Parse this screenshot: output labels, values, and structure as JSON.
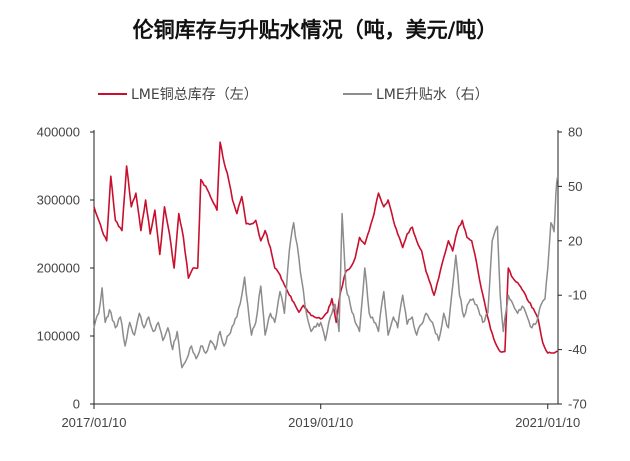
{
  "chart_data": {
    "type": "line",
    "title": "伦铜库存与升贴水情况（吨，美元/吨）",
    "colors": {
      "inventory": "#c8102e",
      "premium": "#8c8c8c"
    },
    "legend_placement": "top",
    "grid": false,
    "x_ticks": [
      "2017/01/10",
      "2019/01/10",
      "2021/01/10"
    ],
    "y_left": {
      "ticks": [
        "0",
        "100000",
        "200000",
        "300000",
        "400000"
      ],
      "range": [
        0,
        400000
      ]
    },
    "y_right": {
      "ticks": [
        "-70",
        "-40",
        "-10",
        "20",
        "50",
        "80"
      ],
      "range": [
        -70,
        80
      ]
    },
    "series": [
      {
        "name": "LME铜总库存（左）",
        "axis": "left",
        "color": "#c8102e",
        "points": [
          [
            "2017-01-10",
            290000
          ],
          [
            "2017-02-05",
            255000
          ],
          [
            "2017-02-20",
            240000
          ],
          [
            "2017-03-05",
            335000
          ],
          [
            "2017-03-20",
            270000
          ],
          [
            "2017-04-10",
            255000
          ],
          [
            "2017-04-25",
            350000
          ],
          [
            "2017-05-10",
            290000
          ],
          [
            "2017-05-25",
            310000
          ],
          [
            "2017-06-10",
            255000
          ],
          [
            "2017-06-25",
            300000
          ],
          [
            "2017-07-10",
            250000
          ],
          [
            "2017-07-25",
            285000
          ],
          [
            "2017-08-10",
            220000
          ],
          [
            "2017-08-25",
            290000
          ],
          [
            "2017-09-10",
            250000
          ],
          [
            "2017-09-25",
            200000
          ],
          [
            "2017-10-10",
            280000
          ],
          [
            "2017-10-25",
            245000
          ],
          [
            "2017-11-10",
            185000
          ],
          [
            "2017-11-25",
            200000
          ],
          [
            "2017-12-10",
            200000
          ],
          [
            "2017-12-20",
            330000
          ],
          [
            "2018-01-10",
            315000
          ],
          [
            "2018-01-25",
            300000
          ],
          [
            "2018-02-10",
            285000
          ],
          [
            "2018-02-20",
            385000
          ],
          [
            "2018-03-05",
            355000
          ],
          [
            "2018-03-15",
            340000
          ],
          [
            "2018-04-01",
            300000
          ],
          [
            "2018-04-15",
            280000
          ],
          [
            "2018-05-01",
            305000
          ],
          [
            "2018-05-15",
            265000
          ],
          [
            "2018-06-01",
            265000
          ],
          [
            "2018-06-15",
            270000
          ],
          [
            "2018-07-01",
            240000
          ],
          [
            "2018-07-15",
            255000
          ],
          [
            "2018-08-01",
            230000
          ],
          [
            "2018-08-15",
            200000
          ],
          [
            "2018-09-01",
            190000
          ],
          [
            "2018-09-15",
            175000
          ],
          [
            "2018-10-01",
            160000
          ],
          [
            "2018-10-15",
            150000
          ],
          [
            "2018-11-01",
            135000
          ],
          [
            "2018-11-15",
            145000
          ],
          [
            "2018-12-01",
            135000
          ],
          [
            "2018-12-15",
            130000
          ],
          [
            "2019-01-10",
            125000
          ],
          [
            "2019-02-01",
            135000
          ],
          [
            "2019-02-15",
            155000
          ],
          [
            "2019-03-01",
            120000
          ],
          [
            "2019-03-15",
            165000
          ],
          [
            "2019-04-01",
            195000
          ],
          [
            "2019-04-15",
            200000
          ],
          [
            "2019-05-01",
            215000
          ],
          [
            "2019-05-15",
            245000
          ],
          [
            "2019-06-01",
            235000
          ],
          [
            "2019-06-15",
            255000
          ],
          [
            "2019-07-01",
            280000
          ],
          [
            "2019-07-15",
            310000
          ],
          [
            "2019-08-01",
            290000
          ],
          [
            "2019-08-15",
            300000
          ],
          [
            "2019-09-01",
            270000
          ],
          [
            "2019-09-15",
            250000
          ],
          [
            "2019-10-01",
            230000
          ],
          [
            "2019-10-15",
            250000
          ],
          [
            "2019-11-01",
            260000
          ],
          [
            "2019-11-15",
            240000
          ],
          [
            "2019-12-01",
            225000
          ],
          [
            "2019-12-15",
            195000
          ],
          [
            "2020-01-10",
            160000
          ],
          [
            "2020-01-25",
            185000
          ],
          [
            "2020-02-10",
            215000
          ],
          [
            "2020-02-25",
            240000
          ],
          [
            "2020-03-10",
            225000
          ],
          [
            "2020-03-25",
            255000
          ],
          [
            "2020-04-10",
            270000
          ],
          [
            "2020-04-25",
            245000
          ],
          [
            "2020-05-10",
            240000
          ],
          [
            "2020-05-25",
            210000
          ],
          [
            "2020-06-10",
            170000
          ],
          [
            "2020-06-25",
            140000
          ],
          [
            "2020-07-10",
            110000
          ],
          [
            "2020-07-25",
            90000
          ],
          [
            "2020-08-10",
            77000
          ],
          [
            "2020-08-25",
            77000
          ],
          [
            "2020-09-05",
            200000
          ],
          [
            "2020-09-20",
            185000
          ],
          [
            "2020-10-10",
            175000
          ],
          [
            "2020-10-25",
            165000
          ],
          [
            "2020-11-10",
            150000
          ],
          [
            "2020-11-25",
            140000
          ],
          [
            "2020-12-10",
            125000
          ],
          [
            "2020-12-25",
            90000
          ],
          [
            "2021-01-10",
            75000
          ],
          [
            "2021-01-25",
            75000
          ],
          [
            "2021-02-10",
            78000
          ]
        ]
      },
      {
        "name": "LME升贴水（右）",
        "axis": "right",
        "color": "#8c8c8c",
        "points": [
          [
            "2017-01-10",
            -28
          ],
          [
            "2017-01-25",
            -20
          ],
          [
            "2017-02-05",
            -6
          ],
          [
            "2017-02-15",
            -25
          ],
          [
            "2017-03-01",
            -18
          ],
          [
            "2017-03-20",
            -28
          ],
          [
            "2017-04-05",
            -22
          ],
          [
            "2017-04-20",
            -38
          ],
          [
            "2017-05-05",
            -25
          ],
          [
            "2017-05-20",
            -32
          ],
          [
            "2017-06-05",
            -20
          ],
          [
            "2017-06-20",
            -28
          ],
          [
            "2017-07-05",
            -22
          ],
          [
            "2017-07-20",
            -30
          ],
          [
            "2017-08-05",
            -25
          ],
          [
            "2017-08-20",
            -35
          ],
          [
            "2017-09-05",
            -28
          ],
          [
            "2017-09-20",
            -40
          ],
          [
            "2017-10-05",
            -30
          ],
          [
            "2017-10-20",
            -50
          ],
          [
            "2017-11-05",
            -45
          ],
          [
            "2017-11-20",
            -38
          ],
          [
            "2017-12-05",
            -45
          ],
          [
            "2017-12-20",
            -38
          ],
          [
            "2018-01-05",
            -42
          ],
          [
            "2018-01-20",
            -35
          ],
          [
            "2018-02-05",
            -40
          ],
          [
            "2018-02-20",
            -30
          ],
          [
            "2018-03-05",
            -38
          ],
          [
            "2018-03-20",
            -32
          ],
          [
            "2018-04-05",
            -26
          ],
          [
            "2018-04-15",
            -22
          ],
          [
            "2018-05-01",
            -10
          ],
          [
            "2018-05-10",
            0
          ],
          [
            "2018-05-20",
            -15
          ],
          [
            "2018-06-01",
            -32
          ],
          [
            "2018-06-15",
            -25
          ],
          [
            "2018-07-01",
            -5
          ],
          [
            "2018-07-15",
            -32
          ],
          [
            "2018-08-01",
            -20
          ],
          [
            "2018-08-15",
            -25
          ],
          [
            "2018-09-01",
            -8
          ],
          [
            "2018-09-15",
            -20
          ],
          [
            "2018-10-01",
            15
          ],
          [
            "2018-10-15",
            30
          ],
          [
            "2018-11-01",
            10
          ],
          [
            "2018-11-10",
            -2
          ],
          [
            "2018-11-25",
            -20
          ],
          [
            "2018-12-10",
            -30
          ],
          [
            "2019-01-10",
            -25
          ],
          [
            "2019-01-25",
            -35
          ],
          [
            "2019-02-10",
            -22
          ],
          [
            "2019-02-25",
            -15
          ],
          [
            "2019-03-10",
            -30
          ],
          [
            "2019-03-20",
            35
          ],
          [
            "2019-04-01",
            -5
          ],
          [
            "2019-04-15",
            -15
          ],
          [
            "2019-05-01",
            -25
          ],
          [
            "2019-05-15",
            -30
          ],
          [
            "2019-06-01",
            5
          ],
          [
            "2019-06-15",
            -20
          ],
          [
            "2019-07-01",
            -25
          ],
          [
            "2019-07-15",
            -30
          ],
          [
            "2019-08-01",
            -8
          ],
          [
            "2019-08-15",
            -32
          ],
          [
            "2019-09-01",
            -22
          ],
          [
            "2019-09-15",
            -28
          ],
          [
            "2019-10-01",
            -10
          ],
          [
            "2019-10-15",
            -26
          ],
          [
            "2019-11-01",
            -22
          ],
          [
            "2019-11-15",
            -32
          ],
          [
            "2019-12-01",
            -26
          ],
          [
            "2019-12-15",
            -20
          ],
          [
            "2020-01-10",
            -28
          ],
          [
            "2020-01-25",
            -35
          ],
          [
            "2020-02-10",
            -20
          ],
          [
            "2020-02-25",
            -28
          ],
          [
            "2020-03-10",
            -5
          ],
          [
            "2020-03-20",
            12
          ],
          [
            "2020-04-01",
            -10
          ],
          [
            "2020-04-15",
            -22
          ],
          [
            "2020-05-01",
            -14
          ],
          [
            "2020-05-15",
            -12
          ],
          [
            "2020-06-01",
            -18
          ],
          [
            "2020-06-15",
            -25
          ],
          [
            "2020-07-01",
            -20
          ],
          [
            "2020-07-15",
            20
          ],
          [
            "2020-08-01",
            28
          ],
          [
            "2020-08-10",
            -10
          ],
          [
            "2020-08-20",
            -30
          ],
          [
            "2020-09-05",
            -10
          ],
          [
            "2020-09-20",
            -15
          ],
          [
            "2020-10-05",
            -20
          ],
          [
            "2020-10-20",
            -16
          ],
          [
            "2020-11-05",
            -22
          ],
          [
            "2020-11-20",
            -28
          ],
          [
            "2020-12-05",
            -25
          ],
          [
            "2020-12-20",
            -15
          ],
          [
            "2021-01-01",
            -12
          ],
          [
            "2021-01-10",
            5
          ],
          [
            "2021-01-20",
            30
          ],
          [
            "2021-01-30",
            25
          ],
          [
            "2021-02-05",
            45
          ],
          [
            "2021-02-10",
            55
          ]
        ]
      }
    ]
  }
}
